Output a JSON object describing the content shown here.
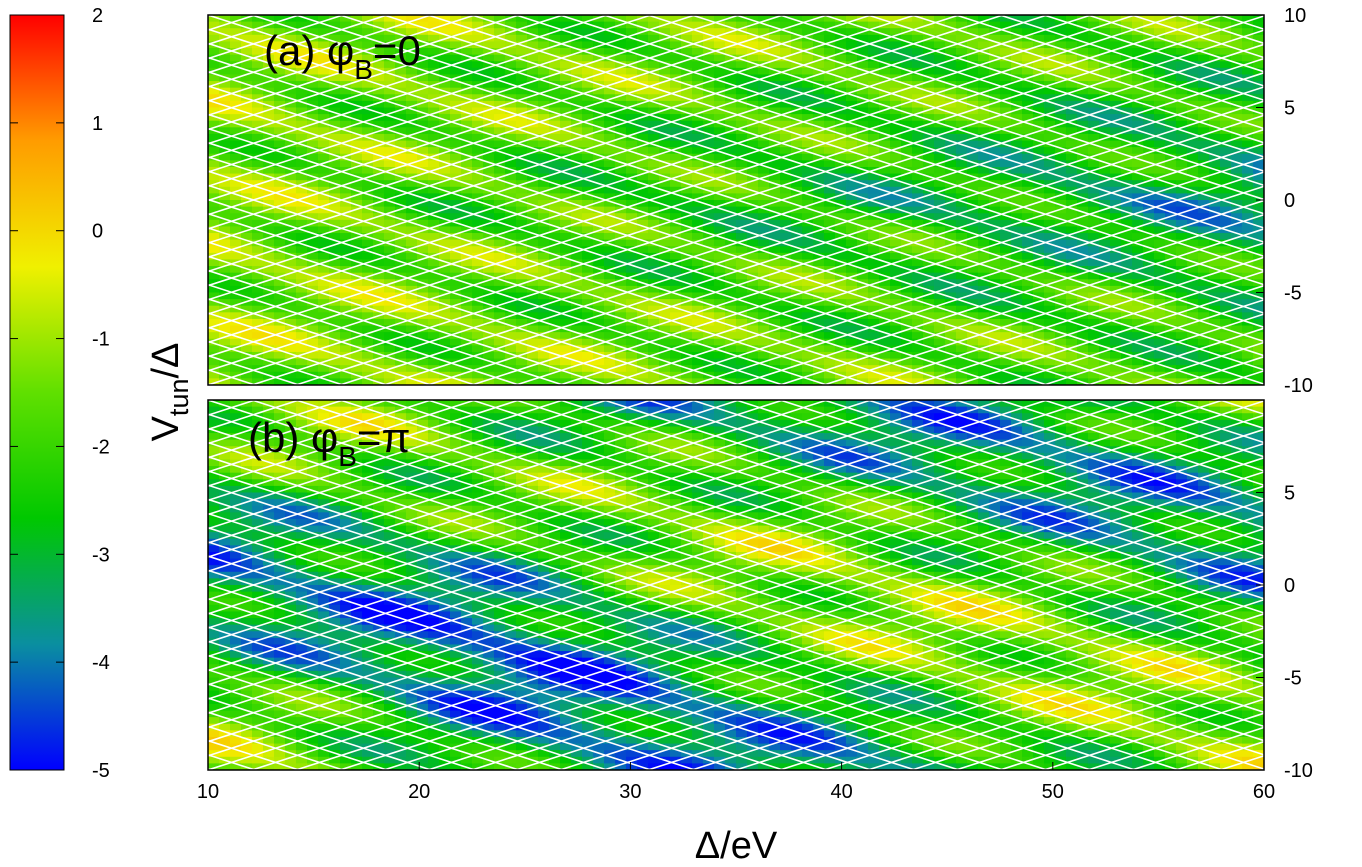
{
  "chart_data": {
    "type": "heatmap",
    "colorbar": {
      "range": [
        -5,
        2
      ],
      "ticks": [
        "2",
        "1",
        "0",
        "-1",
        "-2",
        "-3",
        "-4",
        "-5"
      ],
      "colors": [
        "#0000ff",
        "#0a8fa0",
        "#00c800",
        "#60e000",
        "#f0f000",
        "#ff9c00",
        "#ff0000"
      ]
    },
    "xlabel": "Δ/eV",
    "ylabel_main": "V",
    "ylabel_sub": "tun",
    "ylabel_suffix": "/Δ",
    "xlim": [
      10,
      60
    ],
    "x_ticks": [
      "10",
      "20",
      "30",
      "40",
      "50",
      "60"
    ],
    "panels": [
      {
        "label_prefix": "(a) φ",
        "label_sub": "B",
        "label_suffix": "=0",
        "ylim": [
          -10,
          10
        ],
        "y_ticks": [
          "10",
          "5",
          "0",
          "-5",
          "-10"
        ],
        "phase": 0
      },
      {
        "label_prefix": "(b) φ",
        "label_sub": "B",
        "label_suffix": "=π",
        "ylim": [
          -10,
          10
        ],
        "y_ticks": [
          "5",
          "0",
          "-5",
          "-10"
        ],
        "phase": 3.14159
      }
    ],
    "grid_color": "#ffffff"
  }
}
